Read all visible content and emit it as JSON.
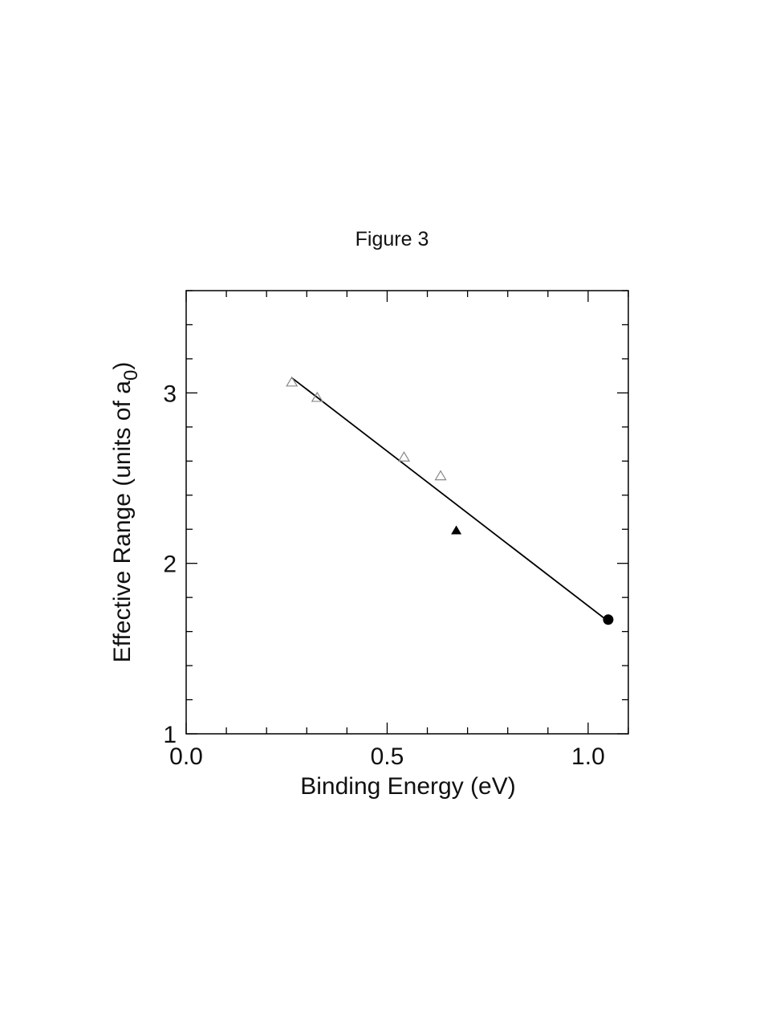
{
  "figure": {
    "title": "Figure 3"
  },
  "chart_data": {
    "type": "scatter",
    "title": "Figure 3",
    "xlabel": "Binding Energy (eV)",
    "ylabel_main": "Effective Range (units of a",
    "ylabel_sub": "0",
    "ylabel_close": ")",
    "xlim": [
      0.0,
      1.1
    ],
    "ylim": [
      1.0,
      3.6
    ],
    "x_ticks": [
      {
        "value": 0.0,
        "label": "0.0"
      },
      {
        "value": 0.5,
        "label": "0.5"
      },
      {
        "value": 1.0,
        "label": "1.0"
      }
    ],
    "y_ticks": [
      {
        "value": 1,
        "label": "1"
      },
      {
        "value": 2,
        "label": "2"
      },
      {
        "value": 3,
        "label": "3"
      }
    ],
    "x_minor_step": 0.1,
    "y_minor_step": 0.2,
    "grid": false,
    "series": [
      {
        "marker": "open-triangle",
        "color": "#888888",
        "points": [
          {
            "x": 0.263,
            "y": 3.06
          },
          {
            "x": 0.326,
            "y": 2.97
          },
          {
            "x": 0.542,
            "y": 2.62
          },
          {
            "x": 0.633,
            "y": 2.51
          }
        ]
      },
      {
        "marker": "filled-triangle",
        "color": "#000000",
        "points": [
          {
            "x": 0.672,
            "y": 2.19
          }
        ]
      },
      {
        "marker": "filled-circle",
        "color": "#000000",
        "points": [
          {
            "x": 1.05,
            "y": 1.67
          }
        ]
      }
    ],
    "fit_line": {
      "x1": 0.262,
      "y1": 3.09,
      "x2": 1.05,
      "y2": 1.66,
      "color": "#000000"
    }
  }
}
